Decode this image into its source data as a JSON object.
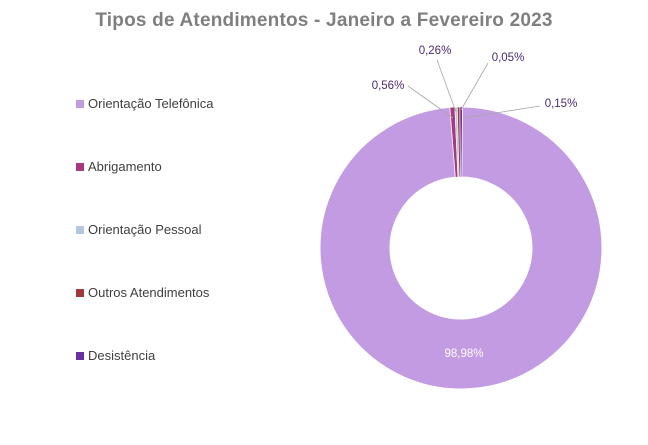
{
  "chart_data": {
    "type": "pie",
    "variant": "doughnut",
    "title": "Tipos de Atendimentos - Janeiro a Fevereiro 2023",
    "legend_position": "left",
    "slices": [
      {
        "label": "Orientação Telefônica",
        "value": 98.98,
        "data_label": "98,98%",
        "color": "#c39be3"
      },
      {
        "label": "Abrigamento",
        "value": 0.56,
        "data_label": "0,56%",
        "color": "#a63a7e"
      },
      {
        "label": "Orientação Pessoal",
        "value": 0.26,
        "data_label": "0,26%",
        "color": "#b4c7de"
      },
      {
        "label": "Outros Atendimentos",
        "value": 0.15,
        "data_label": "0,15%",
        "color": "#9e3a3a"
      },
      {
        "label": "Desistência",
        "value": 0.05,
        "data_label": "0,05%",
        "color": "#6b2f9e"
      }
    ]
  }
}
